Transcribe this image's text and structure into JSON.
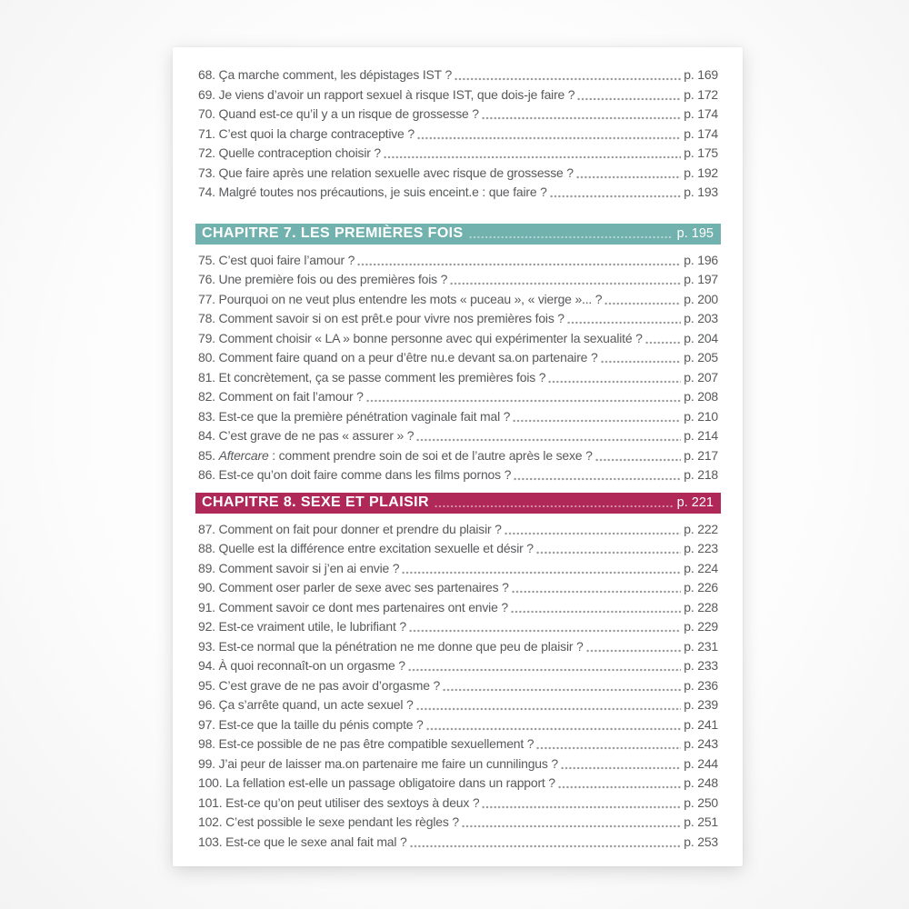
{
  "colors": {
    "paper": "#ffffff",
    "backdrop": "#fafafa",
    "body_text": "#58595b",
    "leader_dots": "#96979a",
    "chapter7_banner": "#71b1ae",
    "chapter8_banner": "#af2857",
    "banner_text": "#ffffff"
  },
  "sections": [
    {
      "type": "items",
      "items": [
        {
          "text": "68. Ça marche comment, les dépistages IST ?",
          "page": "p. 169"
        },
        {
          "text": "69. Je viens d’avoir un rapport sexuel à risque IST, que dois-je faire ?",
          "page": "p. 172"
        },
        {
          "text": "70. Quand est-ce qu’il y a un risque de grossesse ?",
          "page": "p. 174"
        },
        {
          "text": "71. C’est quoi la charge contraceptive ?",
          "page": "p. 174"
        },
        {
          "text": "72. Quelle contraception choisir ?",
          "page": "p. 175"
        },
        {
          "text": "73. Que faire après une relation sexuelle avec risque de grossesse ?",
          "page": "p. 192"
        },
        {
          "text": "74. Malgré toutes nos précautions, je suis enceint.e : que faire ?",
          "page": "p. 193"
        }
      ]
    },
    {
      "type": "chapter",
      "label": "CHAPITRE 7. LES PREMIÈRES FOIS",
      "page": "p. 195",
      "color": "#71b1ae"
    },
    {
      "type": "items",
      "items": [
        {
          "text": "75. C’est quoi faire l’amour ?",
          "page": "p. 196"
        },
        {
          "text": "76. Une première fois ou des premières fois ?",
          "page": "p. 197"
        },
        {
          "text": "77. Pourquoi on ne veut plus entendre les mots « puceau », « vierge »... ?",
          "page": "p. 200"
        },
        {
          "text": "78. Comment savoir si on est prêt.e pour vivre nos premières fois ?",
          "page": "p. 203"
        },
        {
          "text": "79. Comment choisir « LA » bonne personne avec qui expérimenter la sexualité ?",
          "page": "p. 204"
        },
        {
          "text": "80. Comment faire quand on a peur d’être nu.e devant sa.on partenaire ?",
          "page": "p. 205"
        },
        {
          "text": "81. Et concrètement, ça se passe comment les premières fois ?",
          "page": "p. 207"
        },
        {
          "text": "82. Comment on fait l’amour ?",
          "page": "p. 208"
        },
        {
          "text": "83. Est-ce que la première pénétration vaginale fait mal ?",
          "page": "p. 210"
        },
        {
          "text": "84. C’est grave de ne pas « assurer » ?",
          "page": "p. 214"
        },
        {
          "text": "85. ",
          "em": "Aftercare",
          "rest": " : comment prendre soin de soi et de l’autre après le sexe ?",
          "page": "p. 217"
        },
        {
          "text": "86. Est-ce qu’on doit faire comme dans les films pornos ?",
          "page": "p. 218"
        }
      ]
    },
    {
      "type": "chapter",
      "label": "CHAPITRE 8. SEXE ET PLAISIR",
      "page": "p. 221",
      "color": "#af2857"
    },
    {
      "type": "items",
      "items": [
        {
          "text": "87. Comment on fait pour donner et prendre du plaisir ?",
          "page": "p. 222"
        },
        {
          "text": "88. Quelle est la différence entre excitation sexuelle et désir ?",
          "page": "p. 223"
        },
        {
          "text": "89. Comment savoir si j’en ai envie ?",
          "page": "p. 224"
        },
        {
          "text": "90. Comment oser parler de sexe avec ses partenaires ?",
          "page": "p. 226"
        },
        {
          "text": "91. Comment savoir ce dont mes partenaires ont envie ?",
          "page": "p. 228"
        },
        {
          "text": "92. Est-ce vraiment utile, le lubrifiant ?",
          "page": "p. 229"
        },
        {
          "text": "93. Est-ce normal que la pénétration ne me donne que peu de plaisir ?",
          "page": "p. 231"
        },
        {
          "text": "94. À quoi reconnaît-on un orgasme ?",
          "page": "p. 233"
        },
        {
          "text": "95. C’est grave de ne pas avoir d’orgasme ?",
          "page": "p. 236"
        },
        {
          "text": "96. Ça s’arrête quand, un acte sexuel ?",
          "page": "p. 239"
        },
        {
          "text": "97. Est-ce que la taille du pénis compte ?",
          "page": "p. 241"
        },
        {
          "text": "98. Est-ce possible de ne pas être compatible sexuellement ?",
          "page": "p. 243"
        },
        {
          "text": "99. J’ai peur de laisser ma.on partenaire me faire un cunnilingus ?",
          "page": "p. 244"
        },
        {
          "text": "100. La fellation est-elle un passage obligatoire dans un rapport ?",
          "page": "p. 248"
        },
        {
          "text": "101. Est-ce qu’on peut utiliser des sextoys à deux ?",
          "page": "p. 250"
        },
        {
          "text": "102. C’est possible le sexe pendant les règles ?",
          "page": "p. 251"
        },
        {
          "text": "103. Est-ce que le sexe anal fait mal ?",
          "page": "p. 253"
        }
      ]
    }
  ]
}
